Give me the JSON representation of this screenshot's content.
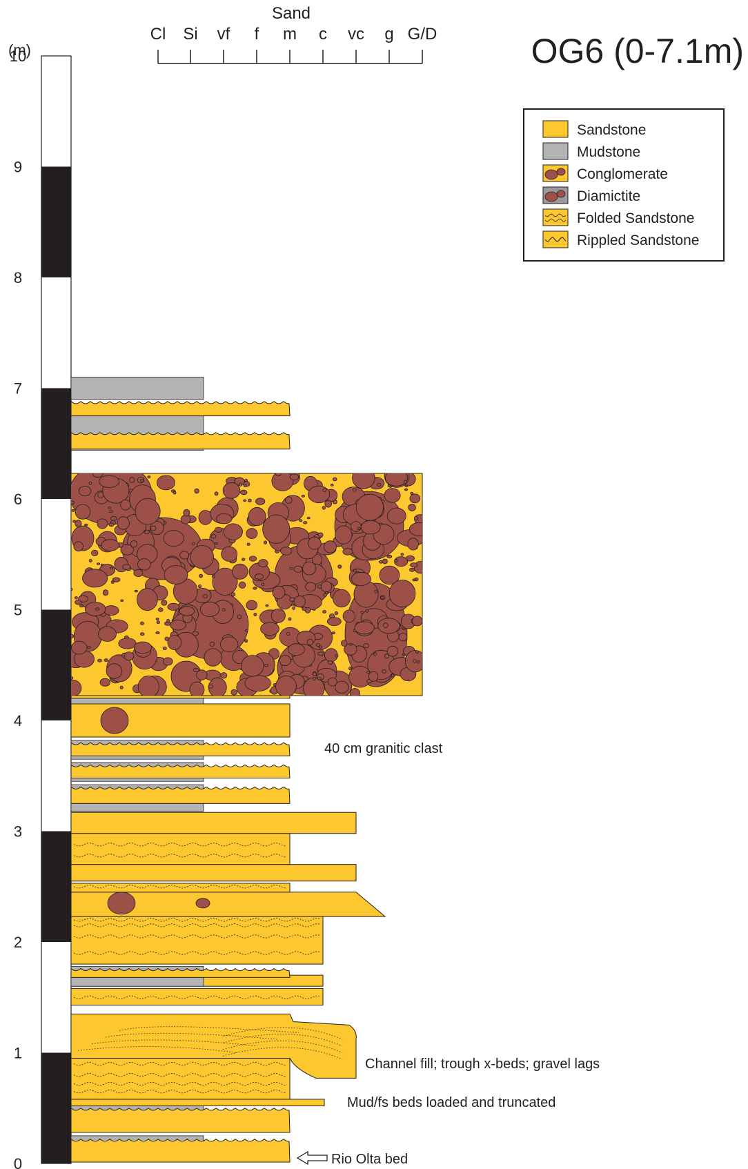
{
  "title": "OG6 (0-7.1m)",
  "depth_axis": {
    "unit_label": "(m)",
    "ticks": [
      "0",
      "1",
      "2",
      "3",
      "4",
      "5",
      "6",
      "7",
      "8",
      "9",
      "10"
    ]
  },
  "grain_scale": {
    "group_label": "Sand",
    "labels": [
      "Cl",
      "Si",
      "vf",
      "f",
      "m",
      "c",
      "vc",
      "g",
      "G/D"
    ]
  },
  "legend": {
    "items": [
      {
        "label": "Sandstone",
        "swatch": "sandstone"
      },
      {
        "label": "Mudstone",
        "swatch": "mudstone"
      },
      {
        "label": "Conglomerate",
        "swatch": "conglomerate"
      },
      {
        "label": "Diamictite",
        "swatch": "diamictite"
      },
      {
        "label": "Folded Sandstone",
        "swatch": "folded"
      },
      {
        "label": "Rippled Sandstone",
        "swatch": "rippled"
      }
    ]
  },
  "annotations": [
    {
      "label": "40 cm granitic clast"
    },
    {
      "label": "Channel fill; trough x-beds; gravel lags"
    },
    {
      "label": "Mud/fs beds loaded and truncated"
    },
    {
      "label": "Rio Olta bed"
    }
  ],
  "colors": {
    "sandstone": "#fdc82f",
    "mudstone": "#b3b3b3",
    "clast": "#9c5048",
    "outline": "#231f20"
  },
  "chart_data": {
    "type": "table",
    "y_axis": {
      "unit": "m",
      "range": [
        0,
        10
      ]
    },
    "grain_size_classes": [
      "Cl",
      "Si",
      "vf",
      "f",
      "m",
      "c",
      "vc",
      "g",
      "G/D"
    ],
    "beds": [
      {
        "bottom": 0.0,
        "top": 0.2,
        "lithology": "Rippled Sandstone",
        "grain": "m"
      },
      {
        "bottom": 0.2,
        "top": 0.45,
        "lithology": "Rippled Sandstone",
        "grain": "m"
      },
      {
        "bottom": 0.45,
        "top": 1.15,
        "lithology": "Folded Sandstone",
        "grain": "m"
      },
      {
        "bottom": 0.7,
        "top": 1.15,
        "lithology": "Sandstone",
        "grain": "vc"
      },
      {
        "bottom": 1.2,
        "top": 1.5,
        "lithology": "Folded Sandstone",
        "grain": "c"
      },
      {
        "bottom": 1.55,
        "top": 1.65,
        "lithology": "Sandstone",
        "grain": "c"
      },
      {
        "bottom": 1.65,
        "top": 1.75,
        "lithology": "Rippled Sandstone",
        "grain": "m"
      },
      {
        "bottom": 1.8,
        "top": 2.25,
        "lithology": "Sandstone",
        "grain": "c"
      },
      {
        "bottom": 2.25,
        "top": 2.45,
        "lithology": "Sandstone",
        "grain": "vc"
      },
      {
        "bottom": 2.5,
        "top": 2.75,
        "lithology": "Sandstone",
        "grain": "vc"
      },
      {
        "bottom": 2.75,
        "top": 3.0,
        "lithology": "Folded Sandstone",
        "grain": "m"
      },
      {
        "bottom": 3.0,
        "top": 3.2,
        "lithology": "Sandstone",
        "grain": "vc"
      },
      {
        "bottom": 3.2,
        "top": 3.5,
        "lithology": "Rippled Sandstone",
        "grain": "m"
      },
      {
        "bottom": 3.5,
        "top": 3.7,
        "lithology": "Rippled Sandstone",
        "grain": "m"
      },
      {
        "bottom": 3.7,
        "top": 3.9,
        "lithology": "Rippled Sandstone",
        "grain": "m"
      },
      {
        "bottom": 3.9,
        "top": 4.2,
        "lithology": "Sandstone",
        "grain": "m"
      },
      {
        "bottom": 4.2,
        "top": 4.4,
        "lithology": "Rippled Sandstone",
        "grain": "m"
      },
      {
        "bottom": 4.4,
        "top": 4.55,
        "lithology": "Rippled Sandstone",
        "grain": "m"
      },
      {
        "bottom": 4.55,
        "top": 6.5,
        "lithology": "Conglomerate",
        "grain": "G/D"
      },
      {
        "bottom": 6.5,
        "top": 6.85,
        "lithology": "Rippled Sandstone",
        "grain": "m"
      },
      {
        "bottom": 6.85,
        "top": 7.1,
        "lithology": "Rippled Sandstone",
        "grain": "m"
      }
    ]
  }
}
